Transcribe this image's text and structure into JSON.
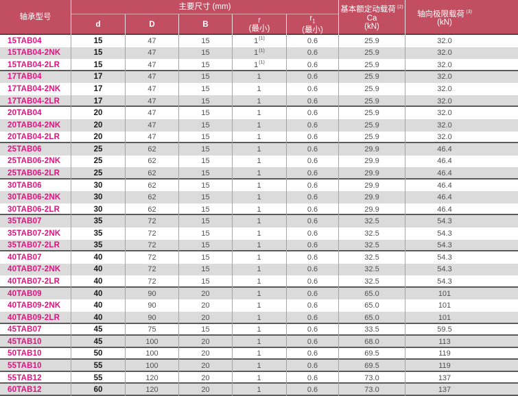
{
  "table": {
    "header": {
      "col_model": "轴承型号",
      "group_dims": "主要尺寸 (mm)",
      "sub_d": "d",
      "sub_D": "D",
      "sub_B": "B",
      "sub_r": "r",
      "sub_r_min": "(最小)",
      "sub_r1_base": "r",
      "sub_r1_sub": "1",
      "sub_r1_min": "(最小)",
      "col_ca_line1": "基本额定动载荷",
      "col_ca_sup": "(2)",
      "col_ca_line2": "Ca",
      "col_ca_line3": "(kN)",
      "col_axial_line1": "轴向极限载荷",
      "col_axial_sup": "(3)",
      "col_axial_line2": "(kN)"
    },
    "rows": [
      {
        "m": "15TAB04",
        "d": "15",
        "D": "47",
        "B": "15",
        "r": "1",
        "rs": "(1)",
        "r1": "0.6",
        "ca": "25.9",
        "ax": "32.0",
        "end": false
      },
      {
        "m": "15TAB04-2NK",
        "d": "15",
        "D": "47",
        "B": "15",
        "r": "1",
        "rs": "(1)",
        "r1": "0.6",
        "ca": "25.9",
        "ax": "32.0",
        "end": false
      },
      {
        "m": "15TAB04-2LR",
        "d": "15",
        "D": "47",
        "B": "15",
        "r": "1",
        "rs": "(1)",
        "r1": "0.6",
        "ca": "25.9",
        "ax": "32.0",
        "end": true
      },
      {
        "m": "17TAB04",
        "d": "17",
        "D": "47",
        "B": "15",
        "r": "1",
        "rs": "",
        "r1": "0.6",
        "ca": "25.9",
        "ax": "32.0",
        "end": false
      },
      {
        "m": "17TAB04-2NK",
        "d": "17",
        "D": "47",
        "B": "15",
        "r": "1",
        "rs": "",
        "r1": "0.6",
        "ca": "25.9",
        "ax": "32.0",
        "end": false
      },
      {
        "m": "17TAB04-2LR",
        "d": "17",
        "D": "47",
        "B": "15",
        "r": "1",
        "rs": "",
        "r1": "0.6",
        "ca": "25.9",
        "ax": "32.0",
        "end": true
      },
      {
        "m": "20TAB04",
        "d": "20",
        "D": "47",
        "B": "15",
        "r": "1",
        "rs": "",
        "r1": "0.6",
        "ca": "25.9",
        "ax": "32.0",
        "end": false
      },
      {
        "m": "20TAB04-2NK",
        "d": "20",
        "D": "47",
        "B": "15",
        "r": "1",
        "rs": "",
        "r1": "0.6",
        "ca": "25.9",
        "ax": "32.0",
        "end": false
      },
      {
        "m": "20TAB04-2LR",
        "d": "20",
        "D": "47",
        "B": "15",
        "r": "1",
        "rs": "",
        "r1": "0.6",
        "ca": "25.9",
        "ax": "32.0",
        "end": true
      },
      {
        "m": "25TAB06",
        "d": "25",
        "D": "62",
        "B": "15",
        "r": "1",
        "rs": "",
        "r1": "0.6",
        "ca": "29.9",
        "ax": "46.4",
        "end": false
      },
      {
        "m": "25TAB06-2NK",
        "d": "25",
        "D": "62",
        "B": "15",
        "r": "1",
        "rs": "",
        "r1": "0.6",
        "ca": "29.9",
        "ax": "46.4",
        "end": false
      },
      {
        "m": "25TAB06-2LR",
        "d": "25",
        "D": "62",
        "B": "15",
        "r": "1",
        "rs": "",
        "r1": "0.6",
        "ca": "29.9",
        "ax": "46.4",
        "end": true
      },
      {
        "m": "30TAB06",
        "d": "30",
        "D": "62",
        "B": "15",
        "r": "1",
        "rs": "",
        "r1": "0.6",
        "ca": "29.9",
        "ax": "46.4",
        "end": false
      },
      {
        "m": "30TAB06-2NK",
        "d": "30",
        "D": "62",
        "B": "15",
        "r": "1",
        "rs": "",
        "r1": "0.6",
        "ca": "29.9",
        "ax": "46.4",
        "end": false
      },
      {
        "m": "30TAB06-2LR",
        "d": "30",
        "D": "62",
        "B": "15",
        "r": "1",
        "rs": "",
        "r1": "0.6",
        "ca": "29.9",
        "ax": "46.4",
        "end": true
      },
      {
        "m": "35TAB07",
        "d": "35",
        "D": "72",
        "B": "15",
        "r": "1",
        "rs": "",
        "r1": "0.6",
        "ca": "32.5",
        "ax": "54.3",
        "end": false
      },
      {
        "m": "35TAB07-2NK",
        "d": "35",
        "D": "72",
        "B": "15",
        "r": "1",
        "rs": "",
        "r1": "0.6",
        "ca": "32.5",
        "ax": "54.3",
        "end": false
      },
      {
        "m": "35TAB07-2LR",
        "d": "35",
        "D": "72",
        "B": "15",
        "r": "1",
        "rs": "",
        "r1": "0.6",
        "ca": "32.5",
        "ax": "54.3",
        "end": true
      },
      {
        "m": "40TAB07",
        "d": "40",
        "D": "72",
        "B": "15",
        "r": "1",
        "rs": "",
        "r1": "0.6",
        "ca": "32.5",
        "ax": "54.3",
        "end": false
      },
      {
        "m": "40TAB07-2NK",
        "d": "40",
        "D": "72",
        "B": "15",
        "r": "1",
        "rs": "",
        "r1": "0.6",
        "ca": "32.5",
        "ax": "54.3",
        "end": false
      },
      {
        "m": "40TAB07-2LR",
        "d": "40",
        "D": "72",
        "B": "15",
        "r": "1",
        "rs": "",
        "r1": "0.6",
        "ca": "32.5",
        "ax": "54.3",
        "end": true
      },
      {
        "m": "40TAB09",
        "d": "40",
        "D": "90",
        "B": "20",
        "r": "1",
        "rs": "",
        "r1": "0.6",
        "ca": "65.0",
        "ax": "101",
        "end": false
      },
      {
        "m": "40TAB09-2NK",
        "d": "40",
        "D": "90",
        "B": "20",
        "r": "1",
        "rs": "",
        "r1": "0.6",
        "ca": "65.0",
        "ax": "101",
        "end": false
      },
      {
        "m": "40TAB09-2LR",
        "d": "40",
        "D": "90",
        "B": "20",
        "r": "1",
        "rs": "",
        "r1": "0.6",
        "ca": "65.0",
        "ax": "101",
        "end": true
      },
      {
        "m": "45TAB07",
        "d": "45",
        "D": "75",
        "B": "15",
        "r": "1",
        "rs": "",
        "r1": "0.6",
        "ca": "33.5",
        "ax": "59.5",
        "end": true
      },
      {
        "m": "45TAB10",
        "d": "45",
        "D": "100",
        "B": "20",
        "r": "1",
        "rs": "",
        "r1": "0.6",
        "ca": "68.0",
        "ax": "113",
        "end": true
      },
      {
        "m": "50TAB10",
        "d": "50",
        "D": "100",
        "B": "20",
        "r": "1",
        "rs": "",
        "r1": "0.6",
        "ca": "69.5",
        "ax": "119",
        "end": true
      },
      {
        "m": "55TAB10",
        "d": "55",
        "D": "100",
        "B": "20",
        "r": "1",
        "rs": "",
        "r1": "0.6",
        "ca": "69.5",
        "ax": "119",
        "end": true
      },
      {
        "m": "55TAB12",
        "d": "55",
        "D": "120",
        "B": "20",
        "r": "1",
        "rs": "",
        "r1": "0.6",
        "ca": "73.0",
        "ax": "137",
        "end": true
      },
      {
        "m": "60TAB12",
        "d": "60",
        "D": "120",
        "B": "20",
        "r": "1",
        "rs": "",
        "r1": "0.6",
        "ca": "73.0",
        "ax": "137",
        "end": true
      }
    ]
  },
  "colors": {
    "header_bg": "#c14f61",
    "header_text": "#ffffff",
    "header_divider": "#dfa2ad",
    "model_text": "#e0127f",
    "value_text": "#4f4f4f",
    "d_text": "#1a1a1a",
    "row_shade": "#dbdbdb",
    "cell_line": "#a3a3a3",
    "group_line": "#5a5a5a"
  }
}
